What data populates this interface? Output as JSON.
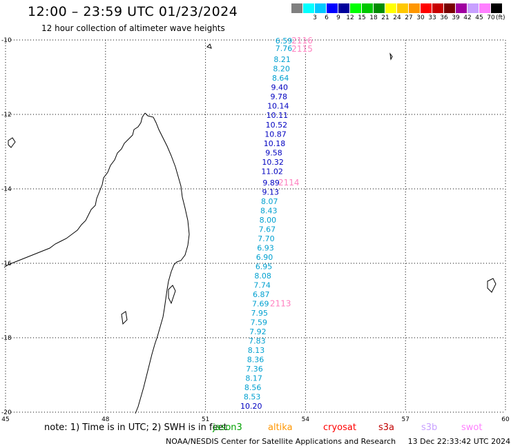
{
  "header": {
    "title": "12:00 – 23:59 UTC 01/23/2024",
    "subtitle": "12 hour collection of altimeter wave heights"
  },
  "legend": {
    "unit": "(ft)",
    "items": [
      {
        "label": "",
        "color": "#808080"
      },
      {
        "label": "3",
        "color": "#00ffff"
      },
      {
        "label": "6",
        "color": "#00c8ff"
      },
      {
        "label": "9",
        "color": "#0000ff"
      },
      {
        "label": "12",
        "color": "#00009b"
      },
      {
        "label": "15",
        "color": "#00ff00"
      },
      {
        "label": "18",
        "color": "#00c800"
      },
      {
        "label": "21",
        "color": "#008c00"
      },
      {
        "label": "24",
        "color": "#ffff00"
      },
      {
        "label": "27",
        "color": "#ffc800"
      },
      {
        "label": "30",
        "color": "#ff9600"
      },
      {
        "label": "33",
        "color": "#ff0000"
      },
      {
        "label": "36",
        "color": "#c80000"
      },
      {
        "label": "39",
        "color": "#780000"
      },
      {
        "label": "42",
        "color": "#a000a0"
      },
      {
        "label": "45",
        "color": "#c8a0ff"
      },
      {
        "label": "70",
        "color": "#ff80ff"
      },
      {
        "label": "",
        "color": "#000000"
      }
    ]
  },
  "axes": {
    "lon_ticks": [
      "45",
      "48",
      "51",
      "54",
      "57",
      "60"
    ],
    "lat_ticks": [
      "-10",
      "-12",
      "-14",
      "-16",
      "-18",
      "-20"
    ]
  },
  "track": {
    "color_low": "#00a0d0",
    "color_high": "#0000c0",
    "points": [
      {
        "lat": -10.02,
        "lon": 53.35,
        "value": "6.59"
      },
      {
        "lat": -10.22,
        "lon": 53.35,
        "value": "7.76"
      },
      {
        "lat": -10.52,
        "lon": 53.3,
        "value": "8.21"
      },
      {
        "lat": -10.77,
        "lon": 53.28,
        "value": "8.20"
      },
      {
        "lat": -11.02,
        "lon": 53.25,
        "value": "8.64"
      },
      {
        "lat": -11.27,
        "lon": 53.22,
        "value": "9.40"
      },
      {
        "lat": -11.52,
        "lon": 53.2,
        "value": "9.78"
      },
      {
        "lat": -11.77,
        "lon": 53.18,
        "value": "10.14"
      },
      {
        "lat": -12.02,
        "lon": 53.15,
        "value": "10.11"
      },
      {
        "lat": -12.28,
        "lon": 53.13,
        "value": "10.52"
      },
      {
        "lat": -12.53,
        "lon": 53.1,
        "value": "10.87"
      },
      {
        "lat": -12.78,
        "lon": 53.07,
        "value": "10.18"
      },
      {
        "lat": -13.03,
        "lon": 53.05,
        "value": "9.58"
      },
      {
        "lat": -13.28,
        "lon": 53.02,
        "value": "10.32"
      },
      {
        "lat": -13.53,
        "lon": 53.0,
        "value": "11.02"
      },
      {
        "lat": -13.83,
        "lon": 52.97,
        "value": "9.89"
      },
      {
        "lat": -14.08,
        "lon": 52.95,
        "value": "9.13"
      },
      {
        "lat": -14.33,
        "lon": 52.92,
        "value": "8.07"
      },
      {
        "lat": -14.58,
        "lon": 52.9,
        "value": "8.43"
      },
      {
        "lat": -14.83,
        "lon": 52.87,
        "value": "8.00"
      },
      {
        "lat": -15.08,
        "lon": 52.85,
        "value": "7.67"
      },
      {
        "lat": -15.33,
        "lon": 52.82,
        "value": "7.70"
      },
      {
        "lat": -15.58,
        "lon": 52.8,
        "value": "6.93"
      },
      {
        "lat": -15.83,
        "lon": 52.77,
        "value": "6.90"
      },
      {
        "lat": -16.08,
        "lon": 52.75,
        "value": "6.95"
      },
      {
        "lat": -16.33,
        "lon": 52.72,
        "value": "8.08"
      },
      {
        "lat": -16.58,
        "lon": 52.7,
        "value": "7.74"
      },
      {
        "lat": -16.83,
        "lon": 52.67,
        "value": "6.87"
      },
      {
        "lat": -17.08,
        "lon": 52.65,
        "value": "7.69"
      },
      {
        "lat": -17.33,
        "lon": 52.62,
        "value": "7.95"
      },
      {
        "lat": -17.58,
        "lon": 52.6,
        "value": "7.59"
      },
      {
        "lat": -17.83,
        "lon": 52.57,
        "value": "7.92"
      },
      {
        "lat": -18.08,
        "lon": 52.55,
        "value": "7.83"
      },
      {
        "lat": -18.33,
        "lon": 52.52,
        "value": "8.13"
      },
      {
        "lat": -18.58,
        "lon": 52.5,
        "value": "8.36"
      },
      {
        "lat": -18.83,
        "lon": 52.47,
        "value": "7.36"
      },
      {
        "lat": -19.08,
        "lon": 52.45,
        "value": "8.17"
      },
      {
        "lat": -19.33,
        "lon": 52.42,
        "value": "8.56"
      },
      {
        "lat": -19.58,
        "lon": 52.4,
        "value": "8.53"
      },
      {
        "lat": -19.83,
        "lon": 52.37,
        "value": "10.20"
      }
    ],
    "passes": [
      {
        "label": "2116",
        "lat": -10.02,
        "lon": 53.9
      },
      {
        "label": "2115",
        "lat": -10.24,
        "lon": 53.9
      },
      {
        "label": "2114",
        "lat": -13.83,
        "lon": 53.5
      },
      {
        "label": "2113",
        "lat": -17.08,
        "lon": 53.25
      }
    ]
  },
  "footer": {
    "note": "note: 1) Time is in UTC; 2) SWH is in feet",
    "missions": [
      {
        "label": "jason3",
        "color": "#00a000"
      },
      {
        "label": "altika",
        "color": "#ff9600"
      },
      {
        "label": "cryosat",
        "color": "#ff0000"
      },
      {
        "label": "s3a",
        "color": "#c00000"
      },
      {
        "label": "s3b",
        "color": "#c8a0ff"
      },
      {
        "label": "swot",
        "color": "#ff80ff"
      }
    ],
    "credit": "NOAA/NESDIS Center for Satellite Applications and Research",
    "timestamp": "13 Dec 22:33:42 UTC 2024"
  }
}
